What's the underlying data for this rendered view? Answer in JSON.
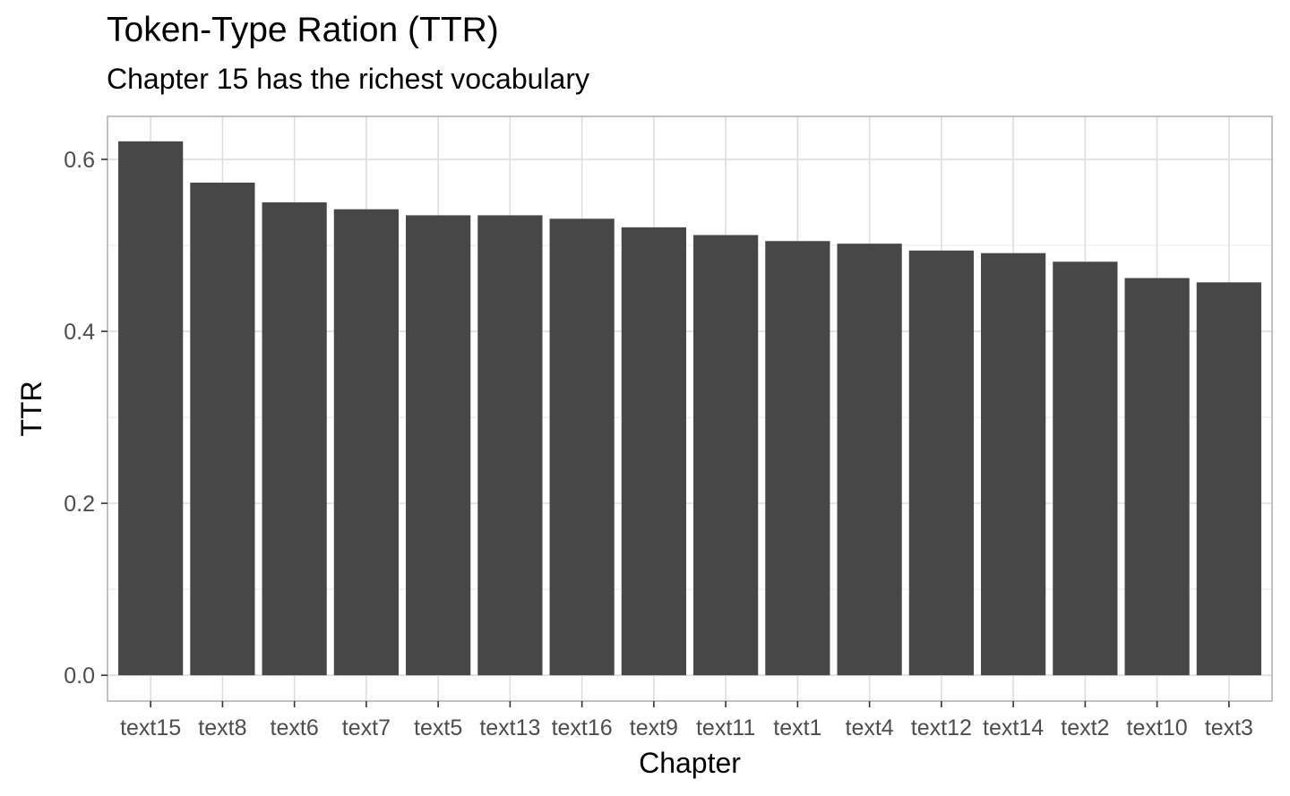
{
  "chart_data": {
    "type": "bar",
    "title": "Token-Type Ration (TTR)",
    "subtitle": "Chapter 15 has the richest vocabulary",
    "xlabel": "Chapter",
    "ylabel": "TTR",
    "categories": [
      "text15",
      "text8",
      "text6",
      "text7",
      "text5",
      "text13",
      "text16",
      "text9",
      "text11",
      "text1",
      "text4",
      "text12",
      "text14",
      "text2",
      "text10",
      "text3"
    ],
    "values": [
      0.621,
      0.573,
      0.55,
      0.542,
      0.535,
      0.535,
      0.531,
      0.521,
      0.512,
      0.505,
      0.502,
      0.494,
      0.491,
      0.481,
      0.462,
      0.457
    ],
    "ylim": [
      -0.03,
      0.65
    ],
    "yticks": [
      0.0,
      0.2,
      0.4,
      0.6
    ],
    "ytick_labels": [
      "0.0",
      "0.2",
      "0.4",
      "0.6"
    ],
    "grid": true,
    "colors": {
      "bar": "#474747",
      "grid_major": "#dedede",
      "grid_minor": "#eeeeee",
      "panel_border": "#b3b3b3",
      "axis_text": "#4d4d4d"
    }
  }
}
